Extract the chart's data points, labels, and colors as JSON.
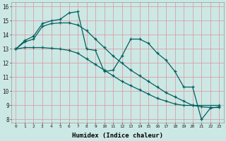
{
  "xlabel": "Humidex (Indice chaleur)",
  "bg_color": "#cce8e4",
  "grid_color": "#d8a0a8",
  "line_color": "#006060",
  "xlim_min": -0.5,
  "xlim_max": 23.5,
  "ylim_min": 7.8,
  "ylim_max": 16.3,
  "yticks": [
    8,
    9,
    10,
    11,
    12,
    13,
    14,
    15,
    16
  ],
  "xticks": [
    0,
    1,
    2,
    3,
    4,
    5,
    6,
    7,
    8,
    9,
    10,
    11,
    12,
    13,
    14,
    15,
    16,
    17,
    18,
    19,
    20,
    21,
    22,
    23
  ],
  "line1_x": [
    0,
    1,
    2,
    3,
    4,
    5,
    6,
    7,
    8,
    9,
    10,
    11,
    12,
    13,
    14,
    15,
    16,
    17,
    18,
    19,
    20,
    21,
    22,
    23
  ],
  "line1_y": [
    13.0,
    13.6,
    13.9,
    14.8,
    15.0,
    15.1,
    15.55,
    15.65,
    13.0,
    12.9,
    11.4,
    11.5,
    12.5,
    13.7,
    13.7,
    13.4,
    12.7,
    12.2,
    11.4,
    10.3,
    10.3,
    8.0,
    8.8,
    8.9
  ],
  "line2_x": [
    0,
    1,
    2,
    3,
    4,
    5,
    6,
    7,
    8,
    9,
    10,
    11,
    12,
    13,
    14,
    15,
    16,
    17,
    18,
    19,
    20,
    23
  ],
  "line2_y": [
    13.0,
    13.5,
    13.7,
    14.6,
    14.8,
    14.85,
    14.85,
    14.7,
    14.3,
    13.7,
    13.1,
    12.5,
    12.0,
    11.5,
    11.1,
    10.7,
    10.3,
    9.9,
    9.6,
    9.3,
    9.0,
    9.0
  ],
  "line3_x": [
    0,
    1,
    2,
    3,
    4,
    5,
    6,
    7,
    8,
    9,
    10,
    11,
    12,
    13,
    14,
    15,
    16,
    17,
    18,
    19,
    20,
    21,
    22,
    23
  ],
  "line3_y": [
    13.0,
    13.1,
    13.1,
    13.1,
    13.05,
    13.0,
    12.9,
    12.7,
    12.3,
    11.9,
    11.5,
    11.1,
    10.7,
    10.4,
    10.1,
    9.8,
    9.5,
    9.3,
    9.1,
    9.0,
    9.0,
    8.9,
    8.85,
    8.85
  ]
}
